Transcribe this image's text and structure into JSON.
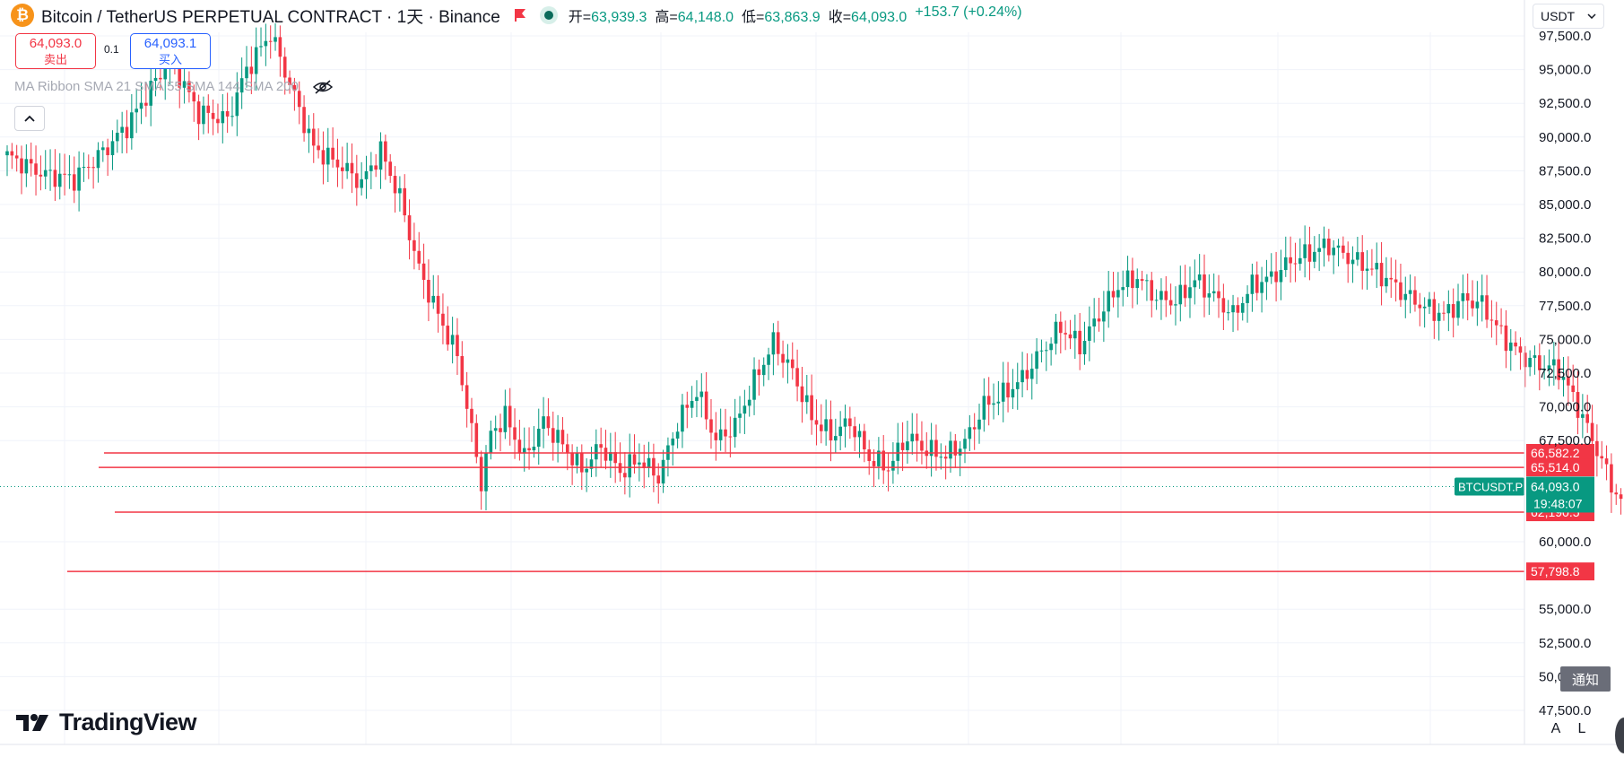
{
  "header": {
    "coin_icon_glyph": "₿",
    "symbol_title": "Bitcoin / TetherUS PERPETUAL CONTRACT · 1天 · Binance",
    "ohlc": {
      "open_label": "开=",
      "open": "63,939.3",
      "high_label": "高=",
      "high": "64,148.0",
      "low_label": "低=",
      "low": "63,863.9",
      "close_label": "收=",
      "close": "64,093.0",
      "change": "+153.7 (+0.24%)"
    },
    "icons": [
      "bitcoin-icon",
      "flag-icon",
      "market-status-icon"
    ]
  },
  "trade": {
    "sell_price": "64,093.0",
    "sell_label": "卖出",
    "spread": "0.1",
    "buy_price": "64,093.1",
    "buy_label": "买入"
  },
  "indicators": {
    "ma_ribbon": "MA Ribbon SMA 21 SMA 55 SMA 144 SMA 200",
    "icons": [
      "eye-hidden-icon",
      "chevron-up-icon"
    ]
  },
  "currency": {
    "selected": "USDT",
    "icon": "chevron-down-icon"
  },
  "branding": {
    "logo_text": "TradingView"
  },
  "notify_label": "通知",
  "scale_buttons": {
    "auto": "A",
    "log": "L"
  },
  "chart_data": {
    "type": "candlestick",
    "symbol": "BTCUSDT.P",
    "interval": "1天",
    "y_axis": {
      "range": [
        46500,
        98000
      ],
      "ticks": [
        "97,500.0",
        "95,000.0",
        "92,500.0",
        "90,000.0",
        "87,500.0",
        "85,000.0",
        "82,500.0",
        "80,000.0",
        "77,500.0",
        "75,000.0",
        "72,500.0",
        "70,000.0",
        "67,500.0",
        "60,000.0",
        "55,000.0",
        "52,500.0",
        "50,000.0",
        "47,500.0"
      ]
    },
    "horizontal_lines": [
      {
        "value": 66582.2,
        "label": "66,582.2"
      },
      {
        "value": 65514.0,
        "label": "65,514.0"
      },
      {
        "value": 62190.5,
        "label": "62,190.5"
      },
      {
        "value": 57798.8,
        "label": "57,798.8"
      }
    ],
    "last_price": {
      "value": 64093.0,
      "label": "64,093.0",
      "countdown": "19:48:07",
      "symbol_tag": "BTCUSDT.P"
    },
    "series_anchors": [
      [
        0,
        88600
      ],
      [
        8,
        87200
      ],
      [
        14,
        86900
      ],
      [
        20,
        88900
      ],
      [
        25,
        90800
      ],
      [
        30,
        93600
      ],
      [
        34,
        95800
      ],
      [
        40,
        91800
      ],
      [
        46,
        91300
      ],
      [
        50,
        95000
      ],
      [
        55,
        97700
      ],
      [
        60,
        93000
      ],
      [
        64,
        89200
      ],
      [
        70,
        87800
      ],
      [
        74,
        86600
      ],
      [
        78,
        89000
      ],
      [
        82,
        85500
      ],
      [
        86,
        80200
      ],
      [
        90,
        76800
      ],
      [
        94,
        73800
      ],
      [
        97,
        68200
      ],
      [
        99,
        64400
      ],
      [
        101,
        68000
      ],
      [
        104,
        69300
      ],
      [
        108,
        66200
      ],
      [
        112,
        68900
      ],
      [
        116,
        67200
      ],
      [
        120,
        65300
      ],
      [
        124,
        67100
      ],
      [
        128,
        65200
      ],
      [
        132,
        66100
      ],
      [
        136,
        64800
      ],
      [
        140,
        68800
      ],
      [
        144,
        71200
      ],
      [
        148,
        67500
      ],
      [
        152,
        68600
      ],
      [
        156,
        71900
      ],
      [
        160,
        74800
      ],
      [
        164,
        72600
      ],
      [
        168,
        69200
      ],
      [
        172,
        67900
      ],
      [
        176,
        68900
      ],
      [
        180,
        66200
      ],
      [
        184,
        65500
      ],
      [
        188,
        67800
      ],
      [
        192,
        66800
      ],
      [
        196,
        66400
      ],
      [
        200,
        67400
      ],
      [
        204,
        70100
      ],
      [
        208,
        70900
      ],
      [
        212,
        72100
      ],
      [
        216,
        74100
      ],
      [
        220,
        75900
      ],
      [
        224,
        74500
      ],
      [
        228,
        76800
      ],
      [
        232,
        78900
      ],
      [
        236,
        79600
      ],
      [
        240,
        78100
      ],
      [
        244,
        77800
      ],
      [
        248,
        79400
      ],
      [
        252,
        78200
      ],
      [
        256,
        76800
      ],
      [
        260,
        79000
      ],
      [
        264,
        79600
      ],
      [
        268,
        80800
      ],
      [
        272,
        81400
      ],
      [
        276,
        82000
      ],
      [
        280,
        81100
      ],
      [
        284,
        80400
      ],
      [
        288,
        79500
      ],
      [
        292,
        78300
      ],
      [
        296,
        77400
      ],
      [
        300,
        76800
      ],
      [
        304,
        78000
      ],
      [
        308,
        77600
      ],
      [
        312,
        75400
      ],
      [
        316,
        73800
      ],
      [
        320,
        73100
      ],
      [
        324,
        72800
      ],
      [
        328,
        70000
      ],
      [
        332,
        66800
      ],
      [
        336,
        63500
      ],
      [
        340,
        61600
      ],
      [
        344,
        62400
      ],
      [
        348,
        63900
      ],
      [
        352,
        63100
      ],
      [
        356,
        63900
      ],
      [
        360,
        65600
      ],
      [
        364,
        64100
      ],
      [
        368,
        63500
      ],
      [
        372,
        63800
      ],
      [
        376,
        62700
      ],
      [
        380,
        61200
      ],
      [
        384,
        60400
      ],
      [
        388,
        60700
      ],
      [
        392,
        60200
      ],
      [
        396,
        62100
      ],
      [
        400,
        63100
      ],
      [
        404,
        63900
      ],
      [
        408,
        63200
      ],
      [
        412,
        62700
      ],
      [
        416,
        64200
      ],
      [
        420,
        64600
      ],
      [
        424,
        65300
      ],
      [
        428,
        66600
      ],
      [
        432,
        65300
      ],
      [
        436,
        64600
      ],
      [
        440,
        63700
      ],
      [
        444,
        64200
      ],
      [
        448,
        62900
      ],
      [
        452,
        62400
      ],
      [
        456,
        64100
      ],
      [
        460,
        64900
      ],
      [
        464,
        64600
      ],
      [
        468,
        64100
      ]
    ],
    "wick_size": 1100
  }
}
